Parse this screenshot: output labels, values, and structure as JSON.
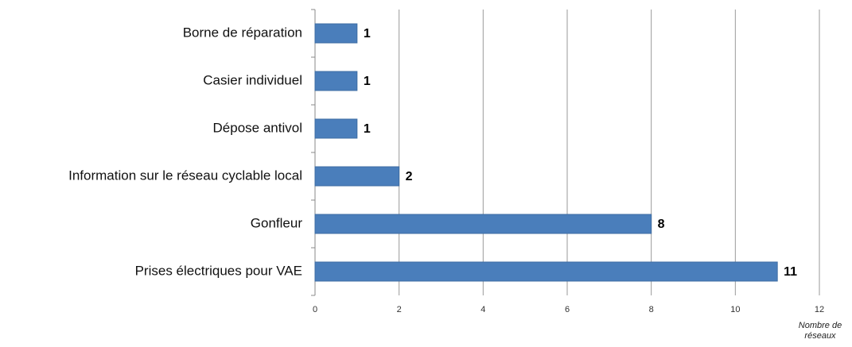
{
  "chart_data": {
    "type": "barh",
    "categories": [
      "Borne de réparation",
      "Casier individuel",
      "Dépose antivol",
      "Information sur le réseau cyclable local",
      "Gonfleur",
      "Prises électriques pour VAE"
    ],
    "values": [
      1,
      1,
      1,
      2,
      8,
      11
    ],
    "color": "#4a7ebb",
    "xlim": [
      0,
      12
    ],
    "xticks": [
      0,
      2,
      4,
      6,
      8,
      10,
      12
    ],
    "x_label": "Nombre de réseaux",
    "grid": true
  }
}
